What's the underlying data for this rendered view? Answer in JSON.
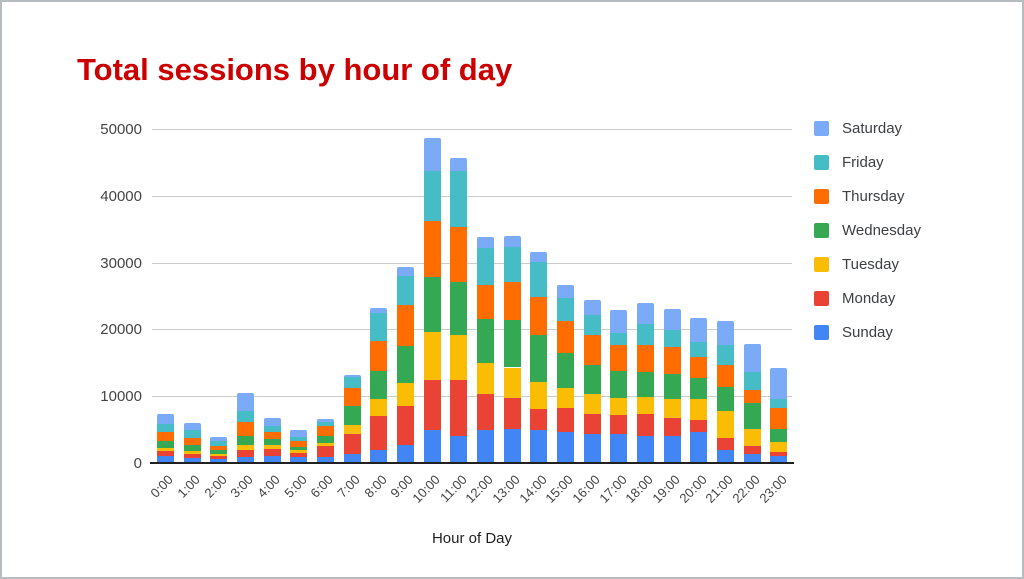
{
  "title": {
    "text": "Total sessions by hour of day",
    "color": "#cc0000"
  },
  "x_axis": {
    "title": "Hour of Day"
  },
  "y_axis": {
    "tick_labels": [
      "0",
      "10000",
      "20000",
      "30000",
      "40000",
      "50000"
    ]
  },
  "legend": {
    "position": "right",
    "items": [
      {
        "label": "Saturday",
        "color": "#7baaf7"
      },
      {
        "label": "Friday",
        "color": "#46bdc6"
      },
      {
        "label": "Thursday",
        "color": "#ff6d01"
      },
      {
        "label": "Wednesday",
        "color": "#34a853"
      },
      {
        "label": "Tuesday",
        "color": "#fbbc04"
      },
      {
        "label": "Monday",
        "color": "#ea4335"
      },
      {
        "label": "Sunday",
        "color": "#4285f4"
      }
    ]
  },
  "chart_data": {
    "type": "bar",
    "stacked": true,
    "title": "Total sessions by hour of day",
    "xlabel": "Hour of Day",
    "ylabel": "",
    "ylim": [
      0,
      50000
    ],
    "ytick_step": 10000,
    "grid": true,
    "legend_position": "right",
    "categories": [
      "0:00",
      "1:00",
      "2:00",
      "3:00",
      "4:00",
      "5:00",
      "6:00",
      "7:00",
      "8:00",
      "9:00",
      "10:00",
      "11:00",
      "12:00",
      "13:00",
      "14:00",
      "15:00",
      "16:00",
      "17:00",
      "18:00",
      "19:00",
      "20:00",
      "21:00",
      "22:00",
      "23:00"
    ],
    "series": [
      {
        "name": "Sunday",
        "color": "#4285f4",
        "values": [
          1000,
          800,
          650,
          850,
          1100,
          900,
          900,
          1400,
          1900,
          2700,
          5000,
          4100,
          4900,
          5100,
          5000,
          4700,
          4300,
          4400,
          4100,
          4000,
          4600,
          1900,
          1400,
          1000
        ]
      },
      {
        "name": "Monday",
        "color": "#ea4335",
        "values": [
          800,
          600,
          350,
          1150,
          1000,
          600,
          1600,
          3000,
          5200,
          5800,
          7400,
          8400,
          5500,
          4600,
          3100,
          3500,
          3000,
          2800,
          3200,
          2800,
          1900,
          1800,
          1200,
          650
        ]
      },
      {
        "name": "Tuesday",
        "color": "#fbbc04",
        "values": [
          400,
          400,
          300,
          700,
          600,
          400,
          500,
          1300,
          2500,
          3500,
          7200,
          6700,
          4500,
          4600,
          4100,
          3000,
          3000,
          2500,
          2600,
          2800,
          3100,
          4100,
          2500,
          1500
        ]
      },
      {
        "name": "Wednesday",
        "color": "#34a853",
        "values": [
          1100,
          850,
          600,
          1300,
          900,
          500,
          1000,
          2800,
          4200,
          5500,
          8300,
          7900,
          6700,
          7100,
          6900,
          5300,
          4300,
          4100,
          3700,
          3800,
          3200,
          3600,
          3900,
          2000
        ]
      },
      {
        "name": "Thursday",
        "color": "#ff6d01",
        "values": [
          1400,
          1150,
          650,
          2100,
          1100,
          850,
          1500,
          2800,
          4500,
          6100,
          8300,
          8300,
          5100,
          5700,
          5700,
          4700,
          4600,
          3800,
          4100,
          4000,
          3100,
          3300,
          2000,
          3100
        ]
      },
      {
        "name": "Friday",
        "color": "#46bdc6",
        "values": [
          1200,
          1100,
          700,
          1750,
          800,
          650,
          700,
          1600,
          4100,
          4400,
          7500,
          8300,
          5500,
          5300,
          5300,
          3500,
          2900,
          1900,
          3100,
          2500,
          2200,
          3000,
          2600,
          1400
        ]
      },
      {
        "name": "Saturday",
        "color": "#7baaf7",
        "values": [
          1500,
          1100,
          650,
          2700,
          1300,
          1000,
          400,
          300,
          800,
          1400,
          4900,
          1900,
          1600,
          1600,
          1500,
          2000,
          2300,
          3400,
          3100,
          3200,
          3600,
          3600,
          4200,
          4600
        ]
      }
    ]
  }
}
